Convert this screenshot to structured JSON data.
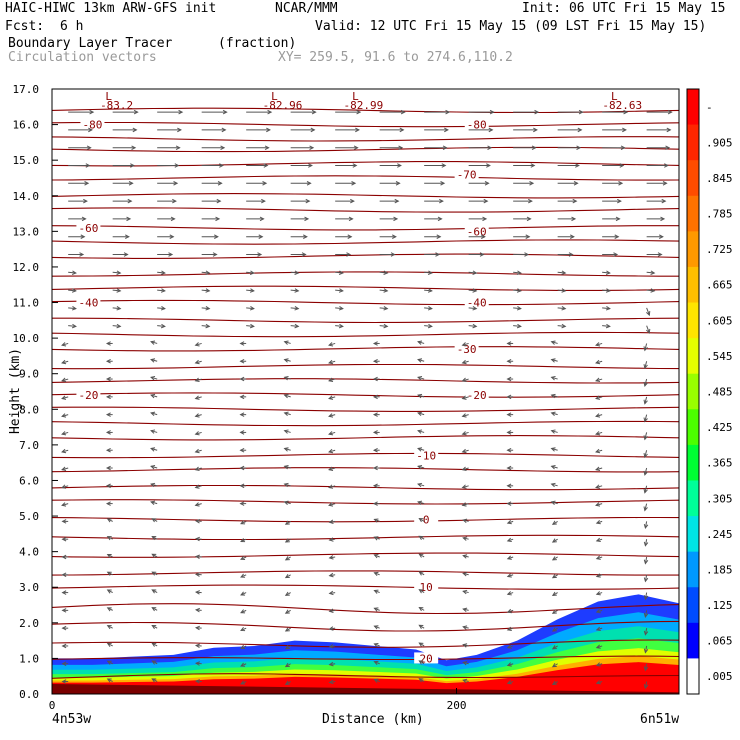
{
  "header": {
    "model": "HAIC-HIWC 13km ARW-GFS init",
    "center": "NCAR/MMM",
    "init": "Init: 06 UTC Fri 15 May 15",
    "fcst_label": "Fcst:",
    "fcst_value": "6 h",
    "valid": "Valid: 12 UTC Fri 15 May 15 (09 LST Fri 15 May 15)",
    "field1_name": "Boundary Layer Tracer",
    "field1_units": "(fraction)",
    "field2_name": "Circulation vectors",
    "xsec": "XY= 259.5, 91.6 to 274.6,110.2"
  },
  "chart_data": {
    "type": "heatmap",
    "xlabel": "Distance (km)",
    "ylabel": "Height (km)",
    "xlim": [
      0,
      310
    ],
    "ylim": [
      0,
      17
    ],
    "xticks": [
      0,
      200
    ],
    "xtick_labels": [
      "0",
      "200"
    ],
    "xend_labels": [
      "4n53w",
      "6n51w"
    ],
    "yticks": [
      "0.0",
      "1.0",
      "2.0",
      "3.0",
      "4.0",
      "5.0",
      "6.0",
      "7.0",
      "8.0",
      "9.0",
      "10.0",
      "11.0",
      "12.0",
      "13.0",
      "14.0",
      "15.0",
      "16.0",
      "17.0"
    ],
    "colorbar": {
      "labels": [
        "-",
        ".905",
        ".845",
        ".785",
        ".725",
        ".665",
        ".605",
        ".545",
        ".485",
        ".425",
        ".365",
        ".305",
        ".245",
        ".185",
        ".125",
        ".065",
        ".005"
      ],
      "colors": [
        "#ff0000",
        "#ff2600",
        "#ff4c00",
        "#ff7200",
        "#ff9900",
        "#ffbf00",
        "#ffe500",
        "#e5ff00",
        "#99ff00",
        "#4cff00",
        "#00ff33",
        "#00ff99",
        "#00e5e5",
        "#0099ff",
        "#004cff",
        "#0000ff",
        "#ffffff"
      ]
    },
    "tracer_top_km": [
      [
        0,
        1.0
      ],
      [
        20,
        1.0
      ],
      [
        40,
        1.05
      ],
      [
        60,
        1.1
      ],
      [
        80,
        1.3
      ],
      [
        100,
        1.35
      ],
      [
        120,
        1.5
      ],
      [
        140,
        1.45
      ],
      [
        160,
        1.35
      ],
      [
        180,
        1.25
      ],
      [
        195,
        0.95
      ],
      [
        210,
        1.1
      ],
      [
        230,
        1.5
      ],
      [
        250,
        2.1
      ],
      [
        270,
        2.6
      ],
      [
        290,
        2.8
      ],
      [
        310,
        2.55
      ]
    ],
    "temperature_contours": [
      {
        "value": "-80",
        "label_x": 20,
        "height_km": 16.0
      },
      {
        "value": "-80",
        "label_x": 210,
        "height_km": 16.0
      },
      {
        "value": "-70",
        "label_x": 205,
        "height_km": 14.6
      },
      {
        "value": "-60",
        "label_x": 18,
        "height_km": 13.1
      },
      {
        "value": "-60",
        "label_x": 210,
        "height_km": 13.0
      },
      {
        "value": "-40",
        "label_x": 18,
        "height_km": 11.0
      },
      {
        "value": "-40",
        "label_x": 210,
        "height_km": 11.0
      },
      {
        "value": "-30",
        "label_x": 205,
        "height_km": 9.7
      },
      {
        "value": "-20",
        "label_x": 18,
        "height_km": 8.4
      },
      {
        "value": "-20",
        "label_x": 210,
        "height_km": 8.4
      },
      {
        "value": "-10",
        "label_x": 185,
        "height_km": 6.7
      },
      {
        "value": "0",
        "label_x": 185,
        "height_km": 4.9
      },
      {
        "value": "10",
        "label_x": 185,
        "height_km": 3.0
      },
      {
        "value": "20",
        "label_x": 185,
        "height_km": 1.0
      }
    ],
    "contour_levels_km": [
      16.4,
      16.0,
      15.6,
      15.3,
      14.9,
      14.5,
      14.0,
      13.6,
      13.1,
      12.7,
      12.3,
      11.8,
      11.4,
      11.0,
      10.5,
      10.1,
      9.7,
      9.2,
      8.8,
      8.4,
      8.0,
      7.6,
      7.2,
      6.7,
      6.3,
      5.8,
      5.4,
      4.9,
      4.4,
      3.9,
      3.4,
      3.0,
      2.4,
      1.9,
      1.4,
      1.0,
      0.5
    ],
    "low_markers": [
      {
        "label": "L",
        "value": "-83.2",
        "x": 28
      },
      {
        "label": "L",
        "value": "-82.96",
        "x": 110
      },
      {
        "label": "L",
        "value": "-82.99",
        "x": 150
      },
      {
        "label": "L",
        "value": "-82.63",
        "x": 278
      }
    ]
  },
  "colors": {
    "contour": "#8b0000",
    "vector": "#555555",
    "background": "#ffffff"
  }
}
